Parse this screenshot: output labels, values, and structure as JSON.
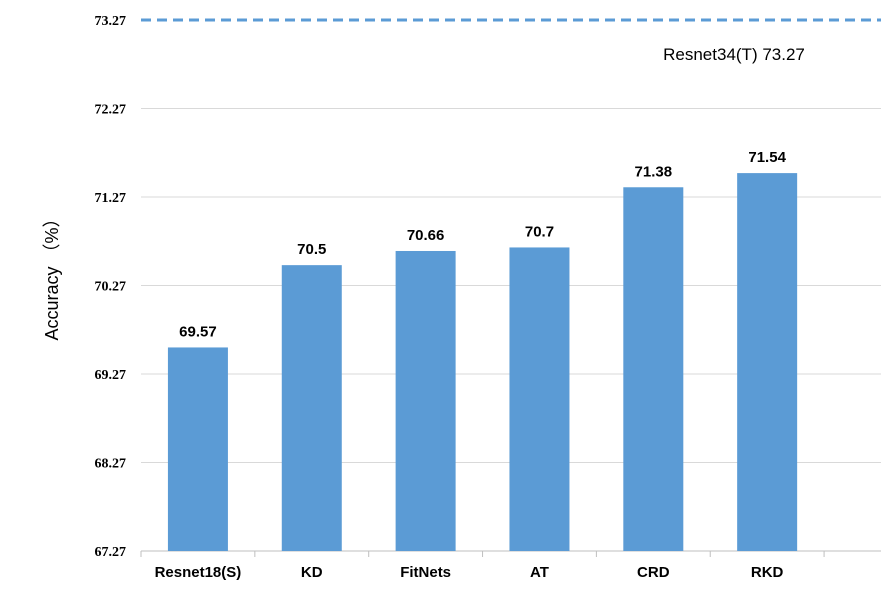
{
  "chart_data": {
    "type": "bar",
    "title": "",
    "xlabel": "",
    "ylabel": "Accuracy （%）",
    "categories": [
      "Resnet18(S)",
      "KD",
      "FitNets",
      "AT",
      "CRD",
      "RKD"
    ],
    "values": [
      69.57,
      70.5,
      70.66,
      70.7,
      71.38,
      71.54
    ],
    "value_labels": [
      "69.57",
      "70.5",
      "70.66",
      "70.7",
      "71.38",
      "71.54"
    ],
    "yticks": [
      67.27,
      68.27,
      69.27,
      70.27,
      71.27,
      72.27,
      73.27
    ],
    "ytick_labels": [
      "67.27",
      "68.27",
      "69.27",
      "70.27",
      "71.27",
      "72.27",
      "73.27"
    ],
    "ylim": [
      67.27,
      73.27
    ],
    "grid": true,
    "bar_color": "#5b9bd5",
    "reference_line": {
      "value": 73.27,
      "label": "Resnet34(T)  73.27",
      "style": "dashed",
      "color": "#5b9bd5"
    }
  }
}
